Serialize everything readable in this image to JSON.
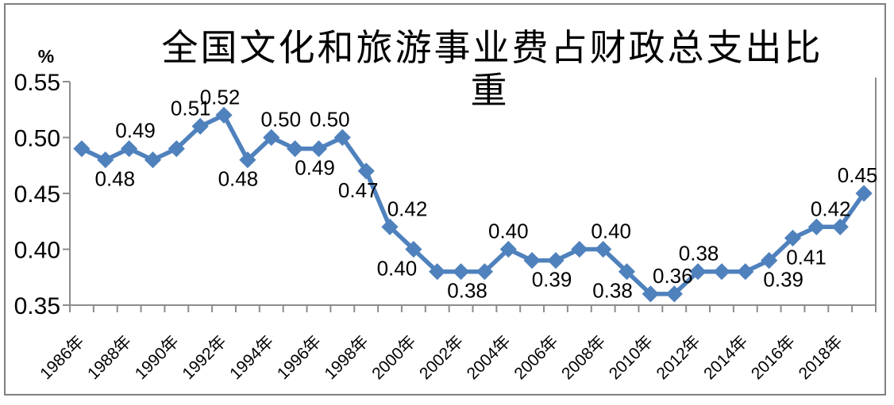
{
  "chart_data": {
    "type": "line",
    "title_line1": "全国文化和旅游事业费占财政总支出比",
    "title_line2": "重",
    "unit_label": "%",
    "ylim": [
      0.35,
      0.55
    ],
    "grid": "off",
    "legend_position": "none",
    "series_color": "#4F81BD",
    "marker_shape": "diamond",
    "axis_color": "#8C8C8C",
    "text_color": "#000000",
    "x_label_every": 2,
    "y_ticks": [
      {
        "v": 0.55,
        "label": "0.55"
      },
      {
        "v": 0.5,
        "label": "0.50"
      },
      {
        "v": 0.45,
        "label": "0.45"
      },
      {
        "v": 0.4,
        "label": "0.40"
      },
      {
        "v": 0.35,
        "label": "0.35"
      }
    ],
    "points": [
      {
        "year": "1986年",
        "value": 0.49,
        "label": null
      },
      {
        "year": "1987年",
        "value": 0.48,
        "label": "0.48",
        "pos": "below",
        "dx": 12
      },
      {
        "year": "1988年",
        "value": 0.49,
        "label": "0.49",
        "pos": "above",
        "dx": 8
      },
      {
        "year": "1989年",
        "value": 0.48,
        "label": null
      },
      {
        "year": "1990年",
        "value": 0.49,
        "label": null
      },
      {
        "year": "1991年",
        "value": 0.51,
        "label": "0.51",
        "pos": "above",
        "dx": -12
      },
      {
        "year": "1992年",
        "value": 0.52,
        "label": "0.52",
        "pos": "above",
        "dx": -5
      },
      {
        "year": "1993年",
        "value": 0.48,
        "label": "0.48",
        "pos": "below",
        "dx": -12
      },
      {
        "year": "1994年",
        "value": 0.5,
        "label": "0.50",
        "pos": "above",
        "dx": 12
      },
      {
        "year": "1995年",
        "value": 0.49,
        "label": null
      },
      {
        "year": "1996年",
        "value": 0.49,
        "label": "0.49",
        "pos": "below",
        "dx": -5
      },
      {
        "year": "1997年",
        "value": 0.5,
        "label": "0.50",
        "pos": "above",
        "dx": -16
      },
      {
        "year": "1998年",
        "value": 0.47,
        "label": "0.47",
        "pos": "below",
        "dx": -10
      },
      {
        "year": "1999年",
        "value": 0.42,
        "label": "0.42",
        "pos": "above",
        "dx": 22
      },
      {
        "year": "2000年",
        "value": 0.4,
        "label": "0.40",
        "pos": "below",
        "dx": -21
      },
      {
        "year": "2001年",
        "value": 0.38,
        "label": null
      },
      {
        "year": "2002年",
        "value": 0.38,
        "label": "0.38",
        "pos": "below",
        "dx": 8
      },
      {
        "year": "2003年",
        "value": 0.38,
        "label": null
      },
      {
        "year": "2004年",
        "value": 0.4,
        "label": "0.40",
        "pos": "above",
        "dx": 0
      },
      {
        "year": "2005年",
        "value": 0.39,
        "label": null
      },
      {
        "year": "2006年",
        "value": 0.39,
        "label": "0.39",
        "pos": "below",
        "dx": -5
      },
      {
        "year": "2007年",
        "value": 0.4,
        "label": null
      },
      {
        "year": "2008年",
        "value": 0.4,
        "label": "0.40",
        "pos": "above",
        "dx": 10
      },
      {
        "year": "2009年",
        "value": 0.38,
        "label": "0.38",
        "pos": "below",
        "dx": -18
      },
      {
        "year": "2010年",
        "value": 0.36,
        "label": null
      },
      {
        "year": "2011年",
        "value": 0.36,
        "label": "0.36",
        "pos": "above",
        "dx": -2
      },
      {
        "year": "2012年",
        "value": 0.38,
        "label": "0.38",
        "pos": "above",
        "dx": 1
      },
      {
        "year": "2013年",
        "value": 0.38,
        "label": null
      },
      {
        "year": "2014年",
        "value": 0.38,
        "label": null
      },
      {
        "year": "2015年",
        "value": 0.39,
        "label": "0.39",
        "pos": "below",
        "dx": 18
      },
      {
        "year": "2016年",
        "value": 0.41,
        "label": "0.41",
        "pos": "below",
        "dx": 17
      },
      {
        "year": "2017年",
        "value": 0.42,
        "label": null
      },
      {
        "year": "2018年",
        "value": 0.42,
        "label": "0.42",
        "pos": "above",
        "dx": -12
      },
      {
        "year": "2019年",
        "value": 0.45,
        "label": "0.45",
        "pos": "above",
        "dx": -8
      }
    ]
  }
}
